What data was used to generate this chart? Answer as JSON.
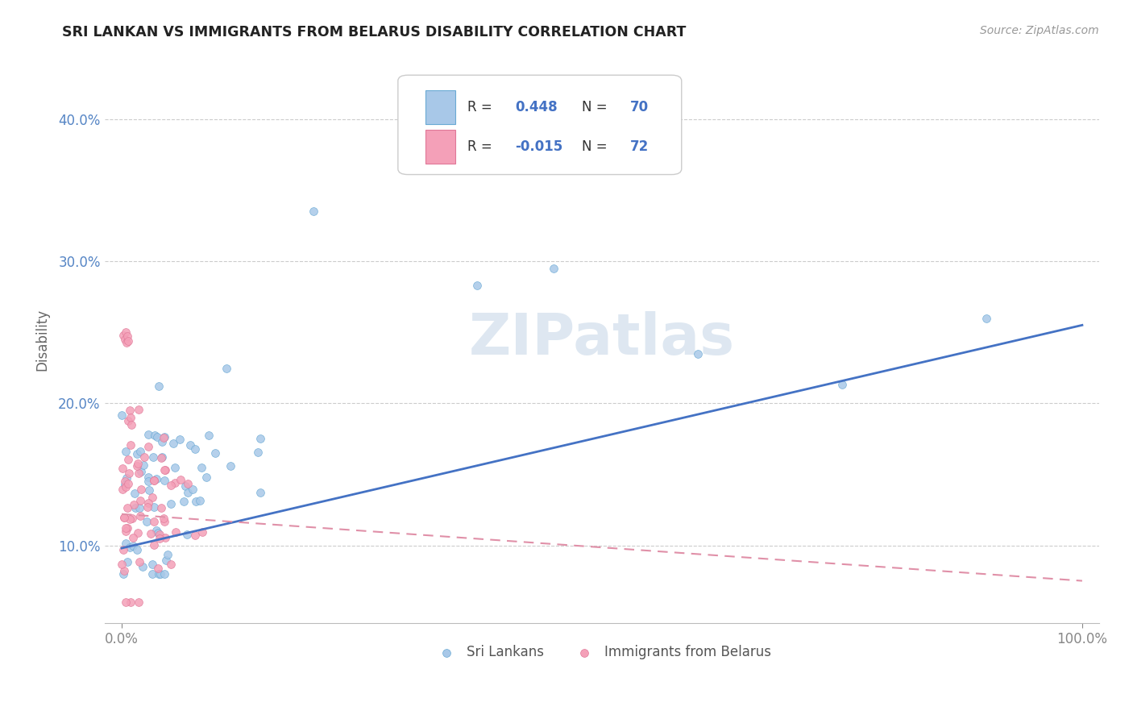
{
  "title": "SRI LANKAN VS IMMIGRANTS FROM BELARUS DISABILITY CORRELATION CHART",
  "source": "Source: ZipAtlas.com",
  "ylabel_label": "Disability",
  "legend_label1": "Sri Lankans",
  "legend_label2": "Immigrants from Belarus",
  "R1": 0.448,
  "N1": 70,
  "R2": -0.015,
  "N2": 72,
  "color_blue_fill": "#a8c8e8",
  "color_blue_edge": "#6aaad4",
  "color_pink_fill": "#f4a0b8",
  "color_pink_edge": "#e07898",
  "color_blue_line": "#4472c4",
  "color_pink_line": "#e090a8",
  "watermark": "ZIPatlas",
  "watermark_color": "#c8d8e8",
  "xlim": [
    0.0,
    1.0
  ],
  "ylim_min": 0.045,
  "ylim_max": 0.445,
  "xticks": [
    0.0,
    1.0
  ],
  "xtick_labels": [
    "0.0%",
    "100.0%"
  ],
  "yticks": [
    0.1,
    0.2,
    0.3,
    0.4
  ],
  "ytick_labels": [
    "10.0%",
    "20.0%",
    "30.0%",
    "40.0%"
  ],
  "blue_line_y0": 0.098,
  "blue_line_y1": 0.255,
  "pink_line_y0": 0.122,
  "pink_line_y1": 0.075
}
